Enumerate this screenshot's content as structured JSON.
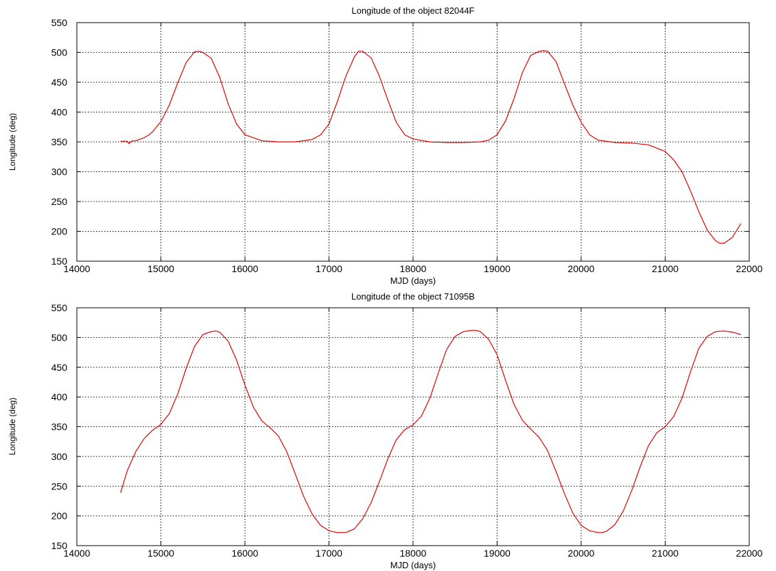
{
  "chart_data": [
    {
      "type": "line",
      "title": "Longitude of the object 82044F",
      "xlabel": "MJD (days)",
      "ylabel": "Longitude (deg)",
      "xlim": [
        14000,
        22000
      ],
      "ylim": [
        150,
        550
      ],
      "xticks": [
        14000,
        15000,
        16000,
        17000,
        18000,
        19000,
        20000,
        21000,
        22000
      ],
      "yticks": [
        150,
        200,
        250,
        300,
        350,
        400,
        450,
        500,
        550
      ],
      "grid": true,
      "series": [
        {
          "color": "#e00000",
          "x": [
            14520,
            14600,
            14620,
            14640,
            14660,
            14700,
            14800,
            14860,
            14900,
            15000,
            15100,
            15200,
            15300,
            15400,
            15450,
            15500,
            15550,
            15600,
            15700,
            15800,
            15900,
            16000,
            16200,
            16400,
            16600,
            16800,
            16900,
            17000,
            17100,
            17200,
            17300,
            17350,
            17400,
            17500,
            17600,
            17700,
            17800,
            17900,
            18000,
            18200,
            18400,
            18600,
            18800,
            18900,
            19000,
            19100,
            19200,
            19300,
            19400,
            19500,
            19550,
            19600,
            19700,
            19800,
            19900,
            20000,
            20100,
            20200,
            20400,
            20600,
            20800,
            21000,
            21100,
            21200,
            21300,
            21400,
            21500,
            21600,
            21650,
            21700,
            21800,
            21900
          ],
          "y": [
            351,
            351,
            347,
            350,
            352,
            352,
            357,
            362,
            367,
            384,
            412,
            449,
            483,
            501,
            502,
            500,
            495,
            490,
            458,
            414,
            380,
            362,
            352,
            350,
            350,
            354,
            362,
            380,
            418,
            460,
            492,
            502,
            502,
            491,
            460,
            420,
            383,
            362,
            355,
            350,
            349,
            349,
            350,
            353,
            362,
            385,
            422,
            466,
            495,
            502,
            503,
            502,
            485,
            448,
            412,
            383,
            362,
            353,
            349,
            348,
            345,
            334,
            320,
            300,
            268,
            233,
            202,
            184,
            180,
            180,
            190,
            213
          ]
        }
      ]
    },
    {
      "type": "line",
      "title": "Longitude of the object 71095B",
      "xlabel": "MJD (days)",
      "ylabel": "Longitude (deg)",
      "xlim": [
        14000,
        22000
      ],
      "ylim": [
        150,
        550
      ],
      "xticks": [
        14000,
        15000,
        16000,
        17000,
        18000,
        19000,
        20000,
        21000,
        22000
      ],
      "yticks": [
        150,
        200,
        250,
        300,
        350,
        400,
        450,
        500,
        550
      ],
      "grid": true,
      "series": [
        {
          "color": "#e00000",
          "x": [
            14520,
            14600,
            14700,
            14800,
            14900,
            15000,
            15100,
            15200,
            15300,
            15400,
            15500,
            15600,
            15650,
            15700,
            15800,
            15900,
            16000,
            16100,
            16200,
            16300,
            16400,
            16500,
            16600,
            16700,
            16800,
            16900,
            17000,
            17100,
            17200,
            17300,
            17400,
            17500,
            17600,
            17700,
            17800,
            17900,
            18000,
            18100,
            18200,
            18300,
            18400,
            18500,
            18600,
            18700,
            18750,
            18800,
            18900,
            19000,
            19100,
            19200,
            19300,
            19400,
            19500,
            19600,
            19700,
            19800,
            19900,
            20000,
            20100,
            20200,
            20250,
            20300,
            20400,
            20500,
            20600,
            20700,
            20800,
            20900,
            21000,
            21100,
            21200,
            21300,
            21400,
            21500,
            21600,
            21700,
            21800,
            21900
          ],
          "y": [
            239,
            276,
            308,
            330,
            344,
            354,
            372,
            405,
            448,
            485,
            505,
            510,
            511,
            509,
            494,
            462,
            420,
            383,
            360,
            348,
            334,
            307,
            270,
            232,
            203,
            184,
            175,
            172,
            172,
            178,
            195,
            222,
            258,
            296,
            328,
            345,
            353,
            368,
            398,
            440,
            480,
            502,
            510,
            512,
            512,
            510,
            497,
            471,
            428,
            388,
            361,
            346,
            332,
            310,
            275,
            238,
            205,
            184,
            175,
            172,
            172,
            174,
            185,
            208,
            242,
            282,
            318,
            340,
            350,
            367,
            398,
            442,
            482,
            502,
            510,
            511,
            509,
            505
          ]
        }
      ]
    }
  ]
}
